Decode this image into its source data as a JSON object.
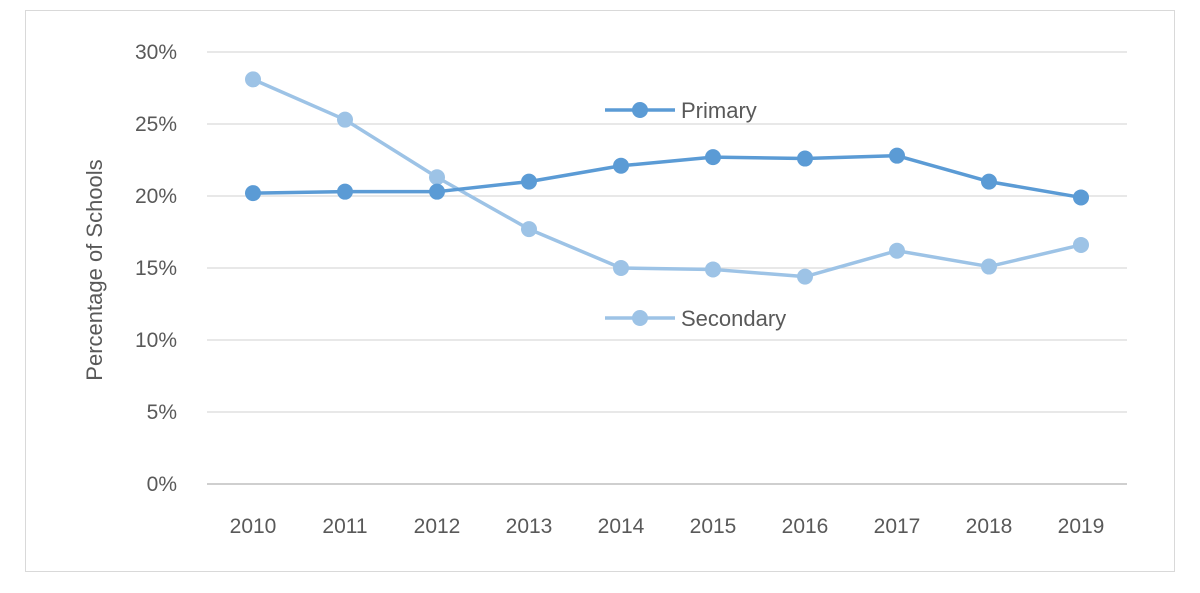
{
  "chart_data": {
    "type": "line",
    "title": "",
    "xlabel": "",
    "ylabel": "Percentage of Schools",
    "categories": [
      "2010",
      "2011",
      "2012",
      "2013",
      "2014",
      "2015",
      "2016",
      "2017",
      "2018",
      "2019"
    ],
    "ylim": [
      0,
      30
    ],
    "yticks": [
      "0%",
      "5%",
      "10%",
      "15%",
      "20%",
      "25%",
      "30%"
    ],
    "grid": true,
    "legend": "inline labels near lines",
    "series": [
      {
        "name": "Primary",
        "color": "#5b9bd5",
        "values": [
          20.2,
          20.3,
          20.3,
          21.0,
          22.1,
          22.7,
          22.6,
          22.8,
          21.0,
          19.9
        ]
      },
      {
        "name": "Secondary",
        "color": "#9dc3e6",
        "values": [
          28.1,
          25.3,
          21.3,
          17.7,
          15.0,
          14.9,
          14.4,
          16.2,
          15.1,
          16.6
        ]
      }
    ]
  }
}
